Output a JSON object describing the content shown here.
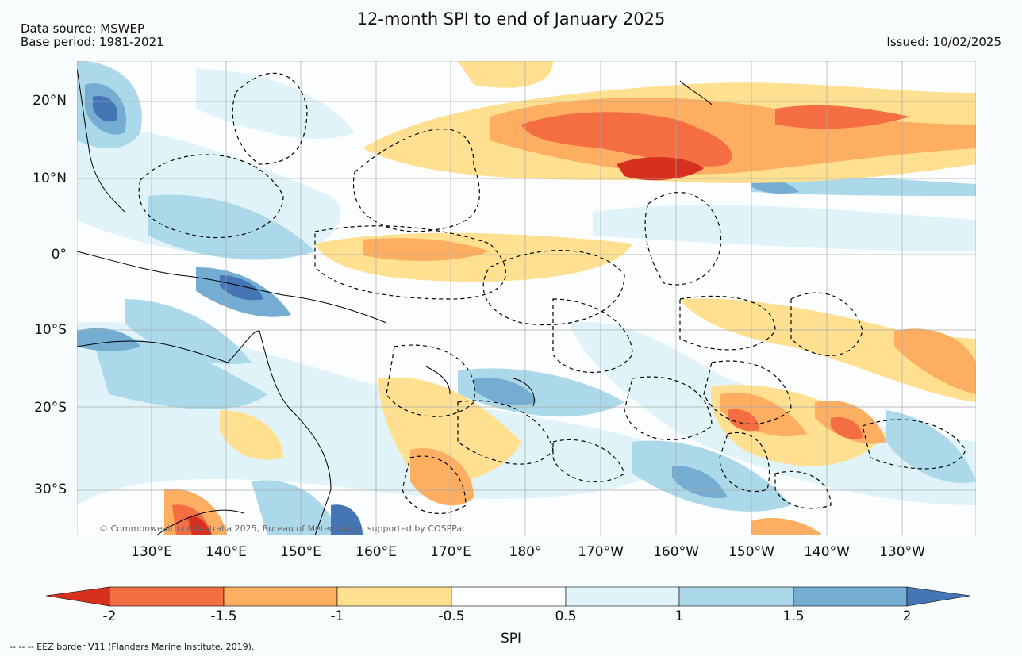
{
  "header": {
    "title": "12-month SPI to end of January 2025",
    "source_line1": "Data source: MSWEP",
    "source_line2": "Base period: 1981-2021",
    "issued": "Issued: 10/02/2025"
  },
  "map": {
    "lat_labels": [
      "20°N",
      "10°N",
      "0°",
      "10°S",
      "20°S",
      "30°S"
    ],
    "lon_labels": [
      "130°E",
      "140°E",
      "150°E",
      "160°E",
      "170°E",
      "180°",
      "170°W",
      "160°W",
      "150°W",
      "140°W",
      "130°W"
    ],
    "copyright": "© Commonwealth of Australia 2025, Bureau of Meteorology, supported by COSPPac"
  },
  "colorbar": {
    "label": "SPI",
    "ticks": [
      "-2",
      "-1.5",
      "-1",
      "-0.5",
      "0.5",
      "1",
      "1.5",
      "2"
    ],
    "colors": [
      "#d7301f",
      "#f46d43",
      "#fdae61",
      "#fee090",
      "#ffffff",
      "#e0f3f8",
      "#abd9e9",
      "#74add1",
      "#4575b4"
    ]
  },
  "footnote": "-- -- -- EEZ border V11 (Flanders Marine Institute, 2019)."
}
